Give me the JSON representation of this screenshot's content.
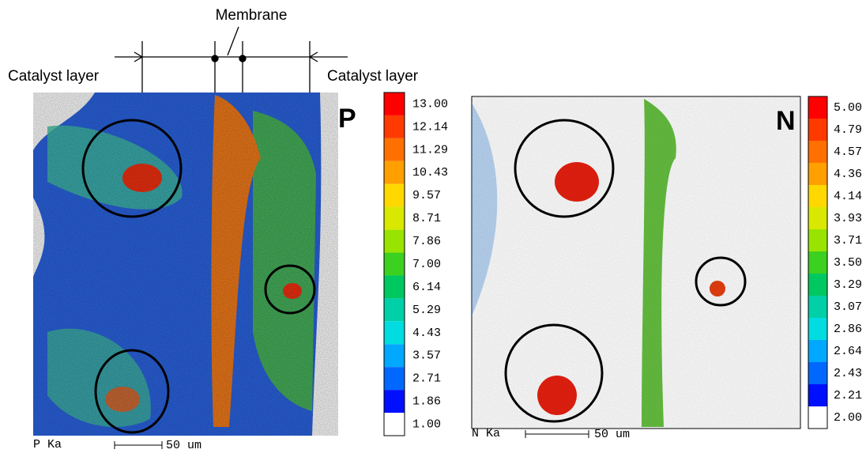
{
  "annotations": {
    "membrane": "Membrane",
    "catalyst_left": "Catalyst layer",
    "catalyst_right": "Catalyst layer"
  },
  "panels": [
    {
      "element": "P",
      "footer": "P Ka",
      "scale_bar": "50 um",
      "scale": [
        "13.00",
        "12.14",
        "11.29",
        "10.43",
        "9.57",
        "8.71",
        "7.86",
        "7.00",
        "6.14",
        "5.29",
        "4.43",
        "3.57",
        "2.71",
        "1.86",
        "1.00"
      ]
    },
    {
      "element": "N",
      "footer": "N Ka",
      "scale_bar": "50 um",
      "scale": [
        "5.00",
        "4.79",
        "4.57",
        "4.36",
        "4.14",
        "3.93",
        "3.71",
        "3.50",
        "3.29",
        "3.07",
        "2.86",
        "2.64",
        "2.43",
        "2.21",
        "2.00"
      ]
    }
  ]
}
